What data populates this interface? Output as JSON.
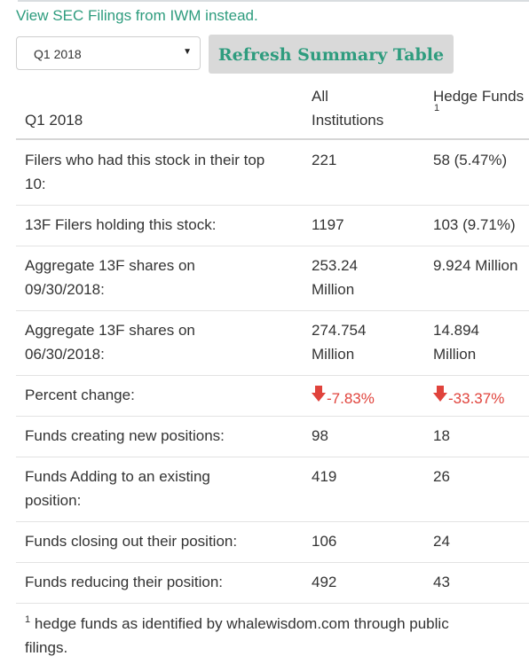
{
  "sec_link": "View SEC Filings from IWM instead.",
  "quarter_select": {
    "value": "Q1 2018"
  },
  "refresh_button": "Refresh Summary Table",
  "table": {
    "headers": {
      "label": "Q1 2018",
      "all_line1": "All",
      "all_line2": "Institutions",
      "hedge": "Hedge Funds",
      "hedge_note": "1"
    },
    "rows": [
      {
        "label_lines": [
          "Filers who had this stock in their top",
          "10:"
        ],
        "all_lines": [
          "221"
        ],
        "hedge_lines": [
          "58 (5.47%)"
        ]
      },
      {
        "label_lines": [
          "13F Filers holding this stock:"
        ],
        "all_lines": [
          "1197"
        ],
        "hedge_lines": [
          "103 (9.71%)"
        ]
      },
      {
        "label_lines": [
          "Aggregate 13F shares on",
          "09/30/2018:"
        ],
        "all_lines": [
          "253.24",
          "Million"
        ],
        "hedge_lines": [
          "9.924 Million"
        ]
      },
      {
        "label_lines": [
          "Aggregate 13F shares on",
          "06/30/2018:"
        ],
        "all_lines": [
          "274.754",
          "Million"
        ],
        "hedge_lines": [
          "14.894",
          "Million"
        ]
      },
      {
        "label_lines": [
          "Percent change:"
        ],
        "all_lines": [
          "-7.83%"
        ],
        "hedge_lines": [
          "-33.37%"
        ],
        "negative": true
      },
      {
        "label_lines": [
          "Funds creating new positions:"
        ],
        "all_lines": [
          "98"
        ],
        "hedge_lines": [
          "18"
        ]
      },
      {
        "label_lines": [
          "Funds Adding to an existing",
          "position:"
        ],
        "all_lines": [
          "419"
        ],
        "hedge_lines": [
          "26"
        ]
      },
      {
        "label_lines": [
          "Funds closing out their position:"
        ],
        "all_lines": [
          "106"
        ],
        "hedge_lines": [
          "24"
        ]
      },
      {
        "label_lines": [
          "Funds reducing their position:"
        ],
        "all_lines": [
          "492"
        ],
        "hedge_lines": [
          "43"
        ]
      }
    ]
  },
  "footnote": {
    "mark": "1",
    "line1": "hedge funds as identified by whalewisdom.com through public",
    "line2": "filings."
  },
  "colors": {
    "accent": "#2e9c7e",
    "negative": "#e0433c",
    "button_bg": "#d9d9d9"
  },
  "icons": {
    "percent_change": "down-arrow-icon",
    "select": "chevron-down-icon"
  }
}
